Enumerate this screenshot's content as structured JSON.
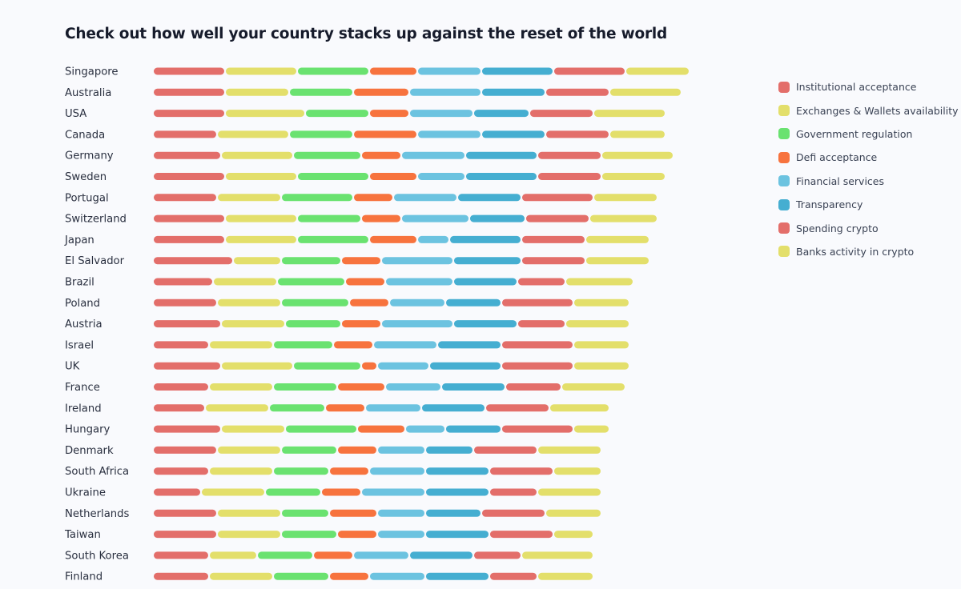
{
  "chart_data": {
    "type": "bar",
    "stacked": true,
    "orientation": "horizontal",
    "title": "Check out how well your country stacks up against the reset of the world",
    "legend_position": "right",
    "grid": false,
    "series": [
      {
        "name": "Institutional acceptance",
        "color": "#e36e6a"
      },
      {
        "name": "Exchanges & Wallets availability",
        "color": "#e3df6b"
      },
      {
        "name": "Government regulation",
        "color": "#6ae270"
      },
      {
        "name": "Defi acceptance",
        "color": "#f7733e"
      },
      {
        "name": "Financial services",
        "color": "#6cc3e0"
      },
      {
        "name": "Transparency",
        "color": "#45aed1"
      },
      {
        "name": "Spending crypto",
        "color": "#e36e6a"
      },
      {
        "name": "Banks activity in crypto",
        "color": "#e3df6b"
      }
    ],
    "categories": [
      "Singapore",
      "Australia",
      "USA",
      "Canada",
      "Germany",
      "Sweden",
      "Portugal",
      "Switzerland",
      "Japan",
      "El Salvador",
      "Brazil",
      "Poland",
      "Austria",
      "Israel",
      "UK",
      "France",
      "Ireland",
      "Hungary",
      "Denmark",
      "South Africa",
      "Ukraine",
      "Netherlands",
      "Taiwan",
      "South Korea",
      "Finland"
    ],
    "values": [
      [
        9,
        9,
        9,
        6,
        8,
        9,
        9,
        8
      ],
      [
        9,
        8,
        8,
        7,
        9,
        8,
        8,
        9
      ],
      [
        9,
        10,
        8,
        5,
        8,
        7,
        8,
        9
      ],
      [
        8,
        9,
        8,
        8,
        8,
        8,
        8,
        7
      ],
      [
        8.5,
        9,
        8.5,
        5,
        8,
        9,
        8,
        9
      ],
      [
        9,
        9,
        9,
        6,
        6,
        9,
        8,
        8
      ],
      [
        8,
        8,
        9,
        5,
        8,
        8,
        9,
        8
      ],
      [
        9,
        9,
        8,
        5,
        8.5,
        7,
        8,
        8.5
      ],
      [
        9,
        9,
        9,
        6,
        4,
        9,
        8,
        8
      ],
      [
        10,
        6,
        7.5,
        5,
        9,
        8.5,
        8,
        8
      ],
      [
        7.5,
        8,
        8.5,
        5,
        8.5,
        8,
        6,
        8.5
      ],
      [
        8,
        8,
        8.5,
        5,
        7,
        7,
        9,
        7
      ],
      [
        8.5,
        8,
        7,
        5,
        9,
        8,
        6,
        8
      ],
      [
        7,
        8,
        7.5,
        5,
        8,
        8,
        9,
        7
      ],
      [
        8.5,
        9,
        8.5,
        2,
        6.5,
        9,
        9,
        7
      ],
      [
        7,
        8,
        8,
        6,
        7,
        8,
        7,
        8
      ],
      [
        6.5,
        8,
        7,
        5,
        7,
        8,
        8,
        7.5
      ],
      [
        8.5,
        8,
        9,
        6,
        5,
        7,
        9,
        4.5
      ],
      [
        8,
        8,
        7,
        5,
        6,
        6,
        8,
        8
      ],
      [
        7,
        8,
        7,
        5,
        7,
        8,
        8,
        6
      ],
      [
        6,
        8,
        7,
        5,
        8,
        8,
        6,
        8
      ],
      [
        8,
        8,
        6,
        6,
        6,
        7,
        8,
        7
      ],
      [
        8,
        8,
        7,
        5,
        6,
        8,
        8,
        5
      ],
      [
        7,
        6,
        7,
        5,
        7,
        8,
        6,
        9
      ],
      [
        7,
        8,
        7,
        5,
        7,
        8,
        6,
        7
      ]
    ]
  }
}
